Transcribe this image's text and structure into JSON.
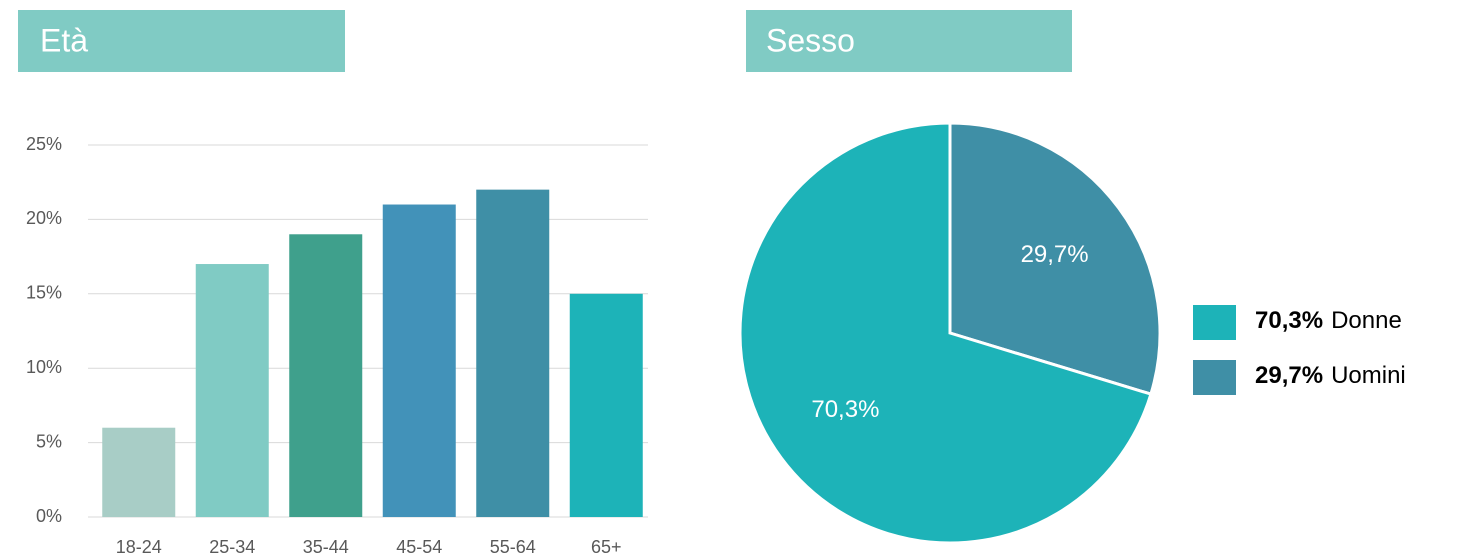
{
  "chart_data": [
    {
      "type": "bar",
      "title": "Età",
      "categories": [
        "18-24",
        "25-34",
        "35-44",
        "45-54",
        "55-64",
        "65+"
      ],
      "values": [
        6,
        17,
        19,
        21,
        22,
        15
      ],
      "colors": [
        "#a8cdc6",
        "#80cbc4",
        "#3fa08c",
        "#4292b9",
        "#3f8fa6",
        "#1db3b8"
      ],
      "ylim": [
        0,
        25
      ],
      "yticks": [
        {
          "value": 0,
          "label": "0%"
        },
        {
          "value": 5,
          "label": "5%"
        },
        {
          "value": 10,
          "label": "10%"
        },
        {
          "value": 15,
          "label": "15%"
        },
        {
          "value": 20,
          "label": "20%"
        },
        {
          "value": 25,
          "label": "25%"
        }
      ],
      "grid": true
    },
    {
      "type": "pie",
      "title": "Sesso",
      "categories": [
        "Donne",
        "Uomini"
      ],
      "values": [
        70.3,
        29.7
      ],
      "value_labels": [
        "70,3%",
        "29,7%"
      ],
      "colors": [
        "#1db3b8",
        "#3f8fa6"
      ],
      "legend": "right"
    }
  ]
}
